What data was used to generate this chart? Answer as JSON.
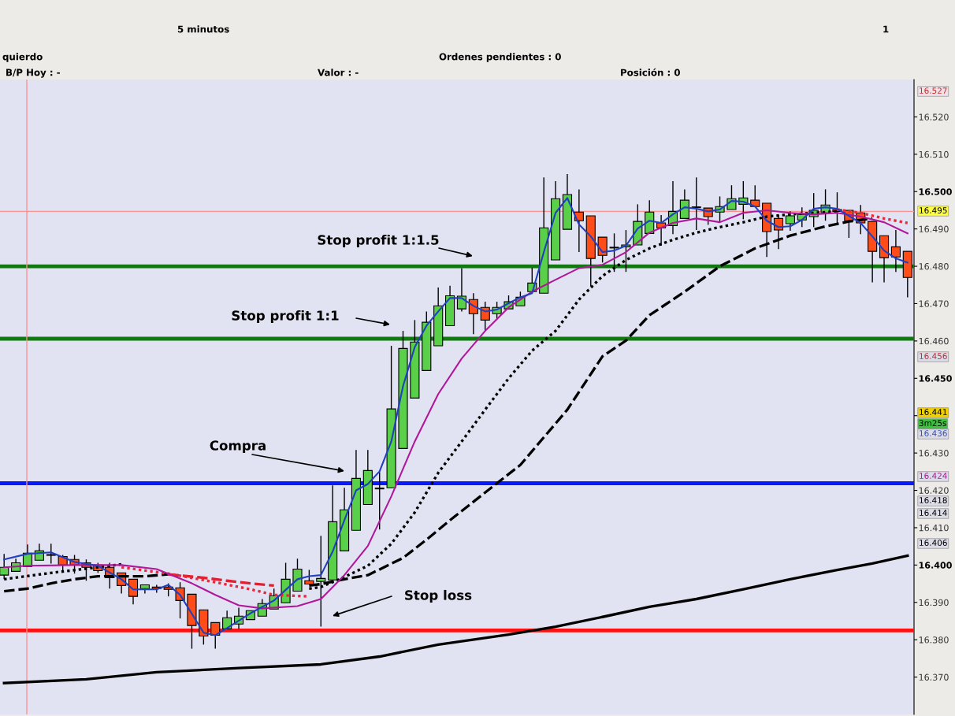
{
  "chart_data": {
    "type": "candlestick",
    "categories": [
      null,
      null,
      null,
      null,
      null,
      null,
      null,
      null,
      null,
      null,
      null,
      null,
      null,
      null,
      null,
      null,
      null,
      null,
      null,
      null,
      null,
      null,
      null,
      null,
      null,
      null,
      null,
      null,
      null,
      null,
      null,
      null,
      null,
      null,
      null,
      null,
      null,
      null,
      null,
      null,
      null,
      null,
      null,
      null,
      null,
      null,
      null,
      null,
      null,
      null,
      null,
      null,
      null,
      null,
      null,
      null,
      null,
      null,
      null,
      null,
      null,
      null,
      null,
      null,
      null,
      null,
      null,
      null,
      null,
      null,
      null,
      null,
      null,
      null,
      null,
      null,
      null,
      null
    ],
    "ohlc": [
      [
        16.3973,
        16.403,
        16.3962,
        16.3994
      ],
      [
        16.3983,
        16.4017,
        16.3983,
        16.4006
      ],
      [
        16.3996,
        16.4055,
        16.3996,
        16.4032
      ],
      [
        16.4013,
        16.4057,
        16.4013,
        16.4038
      ],
      [
        16.4027,
        16.4057,
        16.4004,
        16.4027
      ],
      [
        16.4023,
        16.4027,
        16.3983,
        16.4
      ],
      [
        16.4015,
        16.4027,
        16.3977,
        16.4
      ],
      [
        16.4006,
        16.4015,
        16.3958,
        16.3994
      ],
      [
        16.4,
        16.4006,
        16.3979,
        16.3985
      ],
      [
        16.3994,
        16.4006,
        16.3937,
        16.3966
      ],
      [
        16.3979,
        16.3979,
        16.3924,
        16.3945
      ],
      [
        16.3962,
        16.3962,
        16.3895,
        16.3916
      ],
      [
        16.3937,
        16.3947,
        16.3924,
        16.3947
      ],
      [
        16.3941,
        16.3947,
        16.3926,
        16.3937
      ],
      [
        16.3941,
        16.3951,
        16.3916,
        16.3935
      ],
      [
        16.3939,
        16.3954,
        16.3857,
        16.3905
      ],
      [
        16.3922,
        16.3922,
        16.3776,
        16.3838
      ],
      [
        16.388,
        16.388,
        16.3787,
        16.381
      ],
      [
        16.3846,
        16.3846,
        16.3776,
        16.3812
      ],
      [
        16.3829,
        16.3878,
        16.3829,
        16.3859
      ],
      [
        16.3842,
        16.3886,
        16.3829,
        16.3863
      ],
      [
        16.3854,
        16.3878,
        16.3854,
        16.3878
      ],
      [
        16.3863,
        16.3909,
        16.3863,
        16.3897
      ],
      [
        16.3882,
        16.3937,
        16.3882,
        16.3918
      ],
      [
        16.3899,
        16.4006,
        16.3899,
        16.3962
      ],
      [
        16.393,
        16.4017,
        16.393,
        16.3989
      ],
      [
        16.3958,
        16.3987,
        16.3949,
        16.3949
      ],
      [
        16.3956,
        16.4078,
        16.3835,
        16.3964
      ],
      [
        16.396,
        16.4213,
        16.396,
        16.4116
      ],
      [
        16.4038,
        16.4207,
        16.4038,
        16.4148
      ],
      [
        16.4093,
        16.4308,
        16.4093,
        16.4232
      ],
      [
        16.4162,
        16.4308,
        16.4162,
        16.4253
      ],
      [
        16.4205,
        16.4249,
        16.4095,
        16.4205
      ],
      [
        16.4207,
        16.4587,
        16.4207,
        16.4418
      ],
      [
        16.4312,
        16.4627,
        16.4312,
        16.458
      ],
      [
        16.4447,
        16.4656,
        16.4447,
        16.4597
      ],
      [
        16.4521,
        16.4679,
        16.4521,
        16.465
      ],
      [
        16.4587,
        16.4743,
        16.4587,
        16.4694
      ],
      [
        16.4641,
        16.4748,
        16.4641,
        16.4721
      ],
      [
        16.4686,
        16.4795,
        16.4679,
        16.472
      ],
      [
        16.4711,
        16.4728,
        16.4618,
        16.4673
      ],
      [
        16.469,
        16.4705,
        16.4627,
        16.4656
      ],
      [
        16.4673,
        16.4705,
        16.4658,
        16.469
      ],
      [
        16.4686,
        16.4722,
        16.4686,
        16.4705
      ],
      [
        16.4694,
        16.4732,
        16.4694,
        16.4717
      ],
      [
        16.4732,
        16.4796,
        16.4732,
        16.4755
      ],
      [
        16.4728,
        16.5038,
        16.4728,
        16.4903
      ],
      [
        16.4817,
        16.5028,
        16.4817,
        16.4981
      ],
      [
        16.4899,
        16.5047,
        16.4899,
        16.4992
      ],
      [
        16.4945,
        16.5006,
        16.4838,
        16.4922
      ],
      [
        16.4935,
        16.4935,
        16.4747,
        16.4821
      ],
      [
        16.4878,
        16.4878,
        16.481,
        16.4829
      ],
      [
        16.485,
        16.4888,
        16.4785,
        16.485
      ],
      [
        16.4852,
        16.4897,
        16.4785,
        16.4857
      ],
      [
        16.4857,
        16.4966,
        16.4857,
        16.492
      ],
      [
        16.4888,
        16.4977,
        16.4888,
        16.4945
      ],
      [
        16.4916,
        16.4937,
        16.4855,
        16.4903
      ],
      [
        16.4909,
        16.5028,
        16.4886,
        16.4947
      ],
      [
        16.4928,
        16.5006,
        16.4928,
        16.4977
      ],
      [
        16.4958,
        16.5038,
        16.4897,
        16.4958
      ],
      [
        16.4956,
        16.4956,
        16.4911,
        16.4933
      ],
      [
        16.4945,
        16.4987,
        16.4918,
        16.496
      ],
      [
        16.4952,
        16.5017,
        16.4952,
        16.4981
      ],
      [
        16.4966,
        16.5028,
        16.4926,
        16.4983
      ],
      [
        16.4977,
        16.5017,
        16.496,
        16.496
      ],
      [
        16.4969,
        16.4969,
        16.4825,
        16.4893
      ],
      [
        16.4928,
        16.4937,
        16.4846,
        16.4897
      ],
      [
        16.4914,
        16.4947,
        16.4895,
        16.4935
      ],
      [
        16.4924,
        16.4958,
        16.4905,
        16.4939
      ],
      [
        16.4933,
        16.4996,
        16.4905,
        16.495
      ],
      [
        16.4943,
        16.5006,
        16.4922,
        16.4964
      ],
      [
        16.4952,
        16.4998,
        16.4916,
        16.4947
      ],
      [
        16.495,
        16.495,
        16.4876,
        16.4922
      ],
      [
        16.4943,
        16.4964,
        16.4886,
        16.4916
      ],
      [
        16.492,
        16.492,
        16.4757,
        16.484
      ],
      [
        16.4882,
        16.4882,
        16.4757,
        16.4823
      ],
      [
        16.4852,
        16.4897,
        16.4785,
        16.4825
      ],
      [
        16.484,
        16.484,
        16.4717,
        16.477
      ]
    ],
    "colors": [
      "#5ad04a",
      "#5ad04a",
      "#5ad04a",
      "#5ad04a",
      "#000000",
      "#ff4d1a",
      "#ff4d1a",
      "#ff4d1a",
      "#ff4d1a",
      "#ff4d1a",
      "#ff4d1a",
      "#ff4d1a",
      "#5ad04a",
      "#ff4d1a",
      "#ff4d1a",
      "#ff4d1a",
      "#ff4d1a",
      "#ff4d1a",
      "#ff4d1a",
      "#5ad04a",
      "#5ad04a",
      "#5ad04a",
      "#5ad04a",
      "#5ad04a",
      "#5ad04a",
      "#5ad04a",
      "#ff4d1a",
      "#5ad04a",
      "#5ad04a",
      "#5ad04a",
      "#5ad04a",
      "#5ad04a",
      "#000000",
      "#5ad04a",
      "#5ad04a",
      "#5ad04a",
      "#5ad04a",
      "#5ad04a",
      "#5ad04a",
      "#5ad04a",
      "#ff4d1a",
      "#ff4d1a",
      "#5ad04a",
      "#5ad04a",
      "#5ad04a",
      "#5ad04a",
      "#5ad04a",
      "#5ad04a",
      "#5ad04a",
      "#ff4d1a",
      "#ff4d1a",
      "#ff4d1a",
      "#000000",
      "#5ad04a",
      "#5ad04a",
      "#5ad04a",
      "#ff4d1a",
      "#5ad04a",
      "#5ad04a",
      "#000000",
      "#ff4d1a",
      "#5ad04a",
      "#5ad04a",
      "#5ad04a",
      "#ff4d1a",
      "#ff4d1a",
      "#ff4d1a",
      "#5ad04a",
      "#5ad04a",
      "#5ad04a",
      "#5ad04a",
      "#ff4d1a",
      "#ff4d1a",
      "#ff4d1a",
      "#ff4d1a",
      "#ff4d1a",
      "#ff4d1a",
      "#ff4d1a"
    ],
    "ylim": [
      16.36,
      16.53
    ],
    "yticks": [
      {
        "value": 16.37,
        "label": "16.370"
      },
      {
        "value": 16.38,
        "label": "16.380"
      },
      {
        "value": 16.39,
        "label": "16.390"
      },
      {
        "value": 16.4,
        "label": "16.400"
      },
      {
        "value": 16.41,
        "label": "16.410"
      },
      {
        "value": 16.42,
        "label": "16.420"
      },
      {
        "value": 16.43,
        "label": "16.430"
      },
      {
        "value": 16.44,
        "label": null
      },
      {
        "value": 16.45,
        "label": "16.450"
      },
      {
        "value": 16.46,
        "label": "16.460"
      },
      {
        "value": 16.47,
        "label": "16.470"
      },
      {
        "value": 16.48,
        "label": "16.480"
      },
      {
        "value": 16.49,
        "label": "16.490"
      },
      {
        "value": 16.5,
        "label": "16.500"
      },
      {
        "value": 16.51,
        "label": "16.510"
      },
      {
        "value": 16.52,
        "label": "16.520"
      }
    ],
    "tick_labels": "y",
    "series": [
      {
        "type": "line",
        "color": "#000000",
        "line_style": "solid",
        "values": [
          16.3684,
          null,
          null,
          null,
          null,
          null,
          null,
          16.3694,
          null,
          null,
          null,
          null,
          null,
          16.3713,
          null,
          null,
          null,
          null,
          null,
          null,
          16.3724,
          null,
          null,
          null,
          null,
          null,
          null,
          16.3734,
          null,
          null,
          null,
          null,
          16.3755,
          null,
          null,
          null,
          null,
          16.3787,
          null,
          null,
          null,
          null,
          null,
          16.3814,
          null,
          null,
          null,
          16.3835,
          null,
          null,
          null,
          16.3861,
          null,
          null,
          null,
          16.3888,
          null,
          null,
          null,
          16.3909,
          null,
          null,
          null,
          16.3935,
          null,
          null,
          null,
          16.3962,
          null,
          null,
          null,
          16.3987,
          null,
          null,
          16.4004,
          null,
          null,
          16.4025
        ]
      },
      {
        "type": "line",
        "color": "#000000",
        "line_style": "dashed",
        "values": [
          16.393,
          null,
          16.3937,
          null,
          16.3951,
          null,
          16.3962,
          null,
          16.397,
          null,
          null,
          null,
          16.397,
          null,
          16.3975,
          null,
          null,
          null,
          null,
          null,
          null,
          null,
          null,
          null,
          null,
          null,
          null,
          null,
          null,
          null,
          null,
          null,
          null,
          null,
          null,
          null,
          null,
          null,
          null,
          null,
          null,
          null,
          null,
          null,
          null,
          null,
          null,
          null,
          null,
          null,
          null,
          null,
          null,
          null,
          null,
          null,
          null,
          null,
          null,
          null,
          null,
          null,
          null,
          null,
          null,
          null,
          null,
          null,
          null,
          null,
          null,
          null,
          null,
          null,
          null,
          null,
          null,
          null
        ]
      },
      {
        "type": "line",
        "color": "#000000",
        "line_style": "dashed",
        "values": [
          null,
          null,
          null,
          null,
          null,
          null,
          null,
          null,
          null,
          null,
          null,
          null,
          null,
          null,
          null,
          null,
          null,
          null,
          null,
          null,
          null,
          null,
          null,
          null,
          null,
          null,
          16.3945,
          16.3949,
          null,
          16.3962,
          null,
          16.3973,
          null,
          null,
          16.4019,
          null,
          16.4068,
          null,
          16.412,
          null,
          null,
          null,
          16.4219,
          null,
          16.4268,
          null,
          null,
          null,
          16.4416,
          null,
          null,
          16.4559,
          null,
          16.4601,
          null,
          16.4669,
          null,
          null,
          16.4732,
          null,
          null,
          16.48,
          null,
          null,
          16.4848,
          null,
          null,
          16.4882,
          null,
          null,
          16.4907,
          null,
          16.492,
          null,
          16.4928,
          null,
          null,
          null
        ]
      },
      {
        "type": "line",
        "color": "#e02030",
        "line_style": "dashed",
        "values": [
          null,
          null,
          null,
          null,
          null,
          null,
          null,
          null,
          null,
          null,
          null,
          null,
          null,
          null,
          16.3975,
          null,
          null,
          16.3966,
          null,
          16.3958,
          null,
          16.3951,
          null,
          16.3945,
          null,
          null,
          null,
          null,
          null,
          null,
          null,
          null,
          null,
          null,
          null,
          null,
          null,
          null,
          null,
          null,
          null,
          null,
          null,
          null,
          null,
          null,
          null,
          null,
          null,
          null,
          null,
          null,
          null,
          null,
          null,
          null,
          null,
          null,
          null,
          null,
          null,
          null,
          null,
          null,
          null,
          null,
          null,
          null,
          null,
          null,
          null,
          null,
          null,
          null,
          null,
          null,
          null,
          null
        ]
      },
      {
        "type": "line",
        "color": "#000000",
        "line_style": "dotted",
        "values": [
          16.3962,
          null,
          null,
          null,
          16.3979,
          null,
          null,
          null,
          16.3994,
          null,
          16.4002,
          null,
          null,
          null,
          null,
          null,
          null,
          null,
          null,
          null,
          null,
          null,
          null,
          null,
          null,
          null,
          null,
          null,
          null,
          null,
          null,
          null,
          null,
          null,
          null,
          null,
          null,
          null,
          null,
          null,
          null,
          null,
          null,
          null,
          null,
          null,
          null,
          null,
          null,
          null,
          null,
          null,
          null,
          null,
          null,
          null,
          null,
          null,
          null,
          null,
          null,
          null,
          null,
          null,
          null,
          null,
          null,
          null,
          null,
          null,
          null,
          null,
          null,
          null,
          null,
          null,
          null,
          null
        ]
      },
      {
        "type": "line",
        "color": "#000000",
        "line_style": "dotted",
        "values": [
          null,
          null,
          null,
          null,
          null,
          null,
          null,
          null,
          null,
          null,
          null,
          null,
          null,
          null,
          null,
          null,
          null,
          null,
          null,
          null,
          null,
          null,
          null,
          null,
          null,
          null,
          16.3937,
          16.3941,
          null,
          16.3968,
          null,
          16.3998,
          null,
          16.4057,
          null,
          16.4141,
          null,
          16.4247,
          null,
          16.4331,
          null,
          16.4416,
          null,
          16.45,
          null,
          16.4574,
          null,
          16.4627,
          null,
          16.4711,
          null,
          16.4774,
          null,
          16.4817,
          null,
          16.4848,
          null,
          16.4871,
          null,
          16.489,
          null,
          16.4905,
          null,
          16.4918,
          null,
          16.4933,
          null,
          16.4939,
          null,
          16.4943,
          null,
          16.4947,
          null,
          null,
          null,
          null,
          null,
          null
        ]
      },
      {
        "type": "line",
        "color": "#e8283c",
        "line_style": "dotted",
        "values": [
          null,
          null,
          null,
          null,
          null,
          null,
          null,
          null,
          null,
          null,
          16.3994,
          null,
          null,
          null,
          16.3977,
          null,
          null,
          null,
          16.3954,
          null,
          null,
          16.3935,
          null,
          16.392,
          null,
          null,
          16.3916,
          null,
          null,
          null,
          null,
          null,
          null,
          null,
          null,
          null,
          null,
          null,
          null,
          null,
          null,
          null,
          null,
          null,
          null,
          null,
          null,
          null,
          null,
          null,
          null,
          null,
          null,
          null,
          null,
          null,
          null,
          null,
          null,
          null,
          null,
          null,
          null,
          null,
          null,
          null,
          null,
          null,
          null,
          null,
          null,
          null,
          null,
          null,
          null,
          null,
          null,
          null
        ]
      },
      {
        "type": "line",
        "color": "#e8283c",
        "line_style": "dotted",
        "values": [
          null,
          null,
          null,
          null,
          null,
          null,
          null,
          null,
          null,
          null,
          null,
          null,
          null,
          null,
          null,
          null,
          null,
          null,
          null,
          null,
          null,
          null,
          null,
          null,
          null,
          null,
          null,
          null,
          null,
          null,
          null,
          null,
          null,
          null,
          null,
          null,
          null,
          null,
          null,
          null,
          null,
          null,
          null,
          null,
          null,
          null,
          null,
          null,
          null,
          null,
          null,
          null,
          null,
          null,
          null,
          null,
          null,
          null,
          null,
          null,
          null,
          null,
          null,
          null,
          null,
          null,
          null,
          null,
          null,
          null,
          null,
          16.4952,
          null,
          16.4943,
          null,
          16.4928,
          null,
          16.4916
        ]
      },
      {
        "type": "line",
        "color": "#b0179a",
        "line_style": "solid",
        "values": [
          16.3994,
          null,
          16.3998,
          null,
          null,
          null,
          16.4,
          null,
          null,
          null,
          16.4,
          null,
          null,
          16.3989,
          null,
          null,
          16.3951,
          null,
          16.392,
          null,
          16.3892,
          null,
          16.3884,
          null,
          null,
          16.389,
          null,
          16.3909,
          null,
          16.3973,
          null,
          16.4051,
          null,
          16.4184,
          null,
          16.4331,
          null,
          16.4458,
          null,
          16.4553,
          null,
          16.4627,
          null,
          16.469,
          null,
          16.4732,
          null,
          16.4764,
          null,
          16.4795,
          null,
          16.4804,
          null,
          16.4838,
          null,
          16.489,
          null,
          16.4916,
          null,
          16.4928,
          null,
          16.4918,
          null,
          16.4943,
          null,
          16.495,
          null,
          16.4943,
          null,
          16.4939,
          null,
          16.4943,
          null,
          16.4933,
          null,
          16.4918,
          null,
          16.4888
        ]
      },
      {
        "type": "line",
        "color": "#2040c0",
        "line_style": "solid",
        "values": [
          16.4015,
          null,
          16.403,
          null,
          16.4034,
          null,
          16.4008,
          null,
          16.3998,
          null,
          16.3962,
          16.3935,
          null,
          16.3935,
          16.3947,
          16.392,
          null,
          16.3819,
          16.3812,
          16.3831,
          null,
          16.3871,
          null,
          16.3905,
          null,
          16.3962,
          16.397,
          16.3973,
          16.4036,
          16.412,
          16.42,
          16.4217,
          16.4251,
          16.4331,
          16.4479,
          16.4584,
          16.4641,
          16.4679,
          16.4715,
          16.4715,
          16.4694,
          16.4679,
          16.4684,
          16.4701,
          16.4717,
          16.4728,
          16.4838,
          16.4943,
          16.4983,
          16.4912,
          16.488,
          16.4838,
          16.4842,
          16.4855,
          16.4901,
          16.4922,
          16.4916,
          16.4939,
          16.4958,
          16.4954,
          16.4947,
          16.4952,
          16.4975,
          16.4973,
          16.496,
          16.4922,
          16.4905,
          16.4907,
          16.4924,
          16.4954,
          16.4958,
          16.4954,
          16.4935,
          16.4916,
          16.488,
          16.4842,
          16.4821,
          16.481
        ]
      }
    ],
    "ref_lines": [
      {
        "axis": "y",
        "value": 16.48,
        "color": "#107a10"
      },
      {
        "axis": "y",
        "value": 16.4606,
        "color": "#107a10"
      },
      {
        "axis": "y",
        "value": 16.4219,
        "color": "#0a1aff"
      },
      {
        "axis": "y",
        "value": 16.3825,
        "color": "#ff1010"
      },
      {
        "axis": "y",
        "value": 16.4947,
        "color": "#ff9090",
        "line_style": "solid"
      }
    ],
    "annotations": [
      "Stop profit 1:1.5",
      "Stop profit 1:1",
      "Compra",
      "Stop loss",
      "16.527",
      "16.495",
      "16.456",
      "16.441",
      "16.436",
      "16.424",
      "16.418",
      "16.414",
      "16.406",
      "5 minutos",
      "1",
      "quierdo",
      "Ordenes pendientes : 0",
      "B/P Hoy : -",
      "Valor : -",
      "Posición : 0",
      "3m25s"
    ]
  }
}
